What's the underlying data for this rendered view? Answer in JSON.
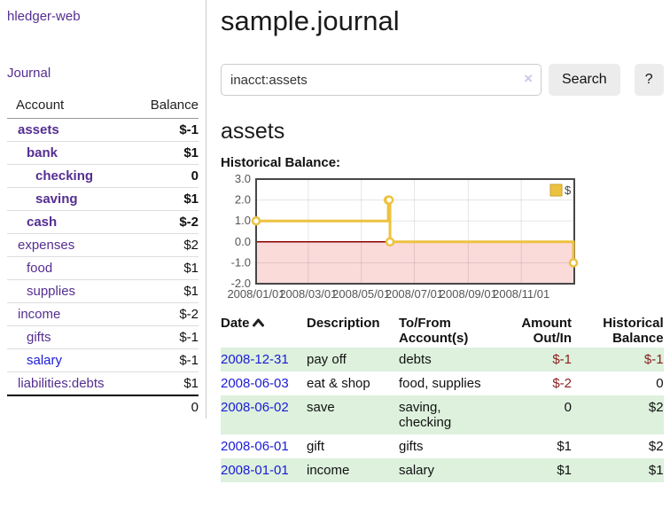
{
  "app_title": "hledger-web",
  "sidebar": {
    "journal_link": "Journal",
    "accounts": {
      "col_account": "Account",
      "col_balance": "Balance",
      "rows": [
        {
          "name": "assets",
          "balance": "$-1",
          "indent": 1,
          "bold": true,
          "balance_negative": true
        },
        {
          "name": "bank",
          "balance": "$1",
          "indent": 2,
          "bold": true,
          "balance_negative": false
        },
        {
          "name": "checking",
          "balance": "0",
          "indent": 3,
          "bold": true,
          "balance_negative": false
        },
        {
          "name": "saving",
          "balance": "$1",
          "indent": 3,
          "bold": true,
          "balance_negative": false
        },
        {
          "name": "cash",
          "balance": "$-2",
          "indent": 2,
          "bold": true,
          "balance_negative": true
        },
        {
          "name": "expenses",
          "balance": "$2",
          "indent": 1,
          "bold": false,
          "balance_negative": false
        },
        {
          "name": "food",
          "balance": "$1",
          "indent": 2,
          "bold": false,
          "balance_negative": false
        },
        {
          "name": "supplies",
          "balance": "$1",
          "indent": 2,
          "bold": false,
          "balance_negative": false
        },
        {
          "name": "income",
          "balance": "$-2",
          "indent": 1,
          "bold": false,
          "balance_negative": true
        },
        {
          "name": "gifts",
          "balance": "$-1",
          "indent": 2,
          "bold": false,
          "balance_negative": true
        },
        {
          "name": "salary",
          "balance": "$-1",
          "indent": 2,
          "bold": false,
          "balance_negative": true,
          "unvisited": true
        },
        {
          "name": "liabilities:debts",
          "balance": "$1",
          "indent": 1,
          "bold": false,
          "balance_negative": false
        }
      ],
      "total": "0"
    }
  },
  "main": {
    "page_title": "sample.journal",
    "search": {
      "value": "inacct:assets",
      "clear_icon": "×",
      "search_button": "Search",
      "help_button": "?"
    },
    "account_heading": "assets",
    "chart_heading": "Historical Balance:"
  },
  "chart_data": {
    "type": "line",
    "step": true,
    "series": [
      {
        "name": "$",
        "color": "#edc240",
        "points": [
          [
            "2008-01-01",
            1
          ],
          [
            "2008-06-01",
            2
          ],
          [
            "2008-06-02",
            2
          ],
          [
            "2008-06-03",
            0
          ],
          [
            "2008-12-31",
            -1
          ]
        ]
      }
    ],
    "ylim": [
      -2,
      3
    ],
    "yticks": [
      "3.0",
      "2.0",
      "1.0",
      "0.0",
      "-1.0",
      "-2.0"
    ],
    "xticks": [
      "2008/01/01",
      "2008/03/01",
      "2008/05/01",
      "2008/07/01",
      "2008/09/01",
      "2008/11/01"
    ],
    "x_range": [
      "2008-01-01",
      "2009-01-01"
    ],
    "legend_position": "top-right",
    "grid": true,
    "negative_region_color": "#fbdada",
    "zero_line_color": "#8b0000",
    "border_color": "#474747",
    "tick_label_color": "#555555"
  },
  "register": {
    "headers": {
      "date": "Date",
      "description": "Description",
      "tofrom": "To/From Account(s)",
      "amount": "Amount Out/In",
      "balance": "Historical Balance"
    },
    "sort": "ascending",
    "rows": [
      {
        "date": "2008-12-31",
        "description": "pay off",
        "accounts": "debts",
        "amount": "$-1",
        "balance": "$-1",
        "amount_negative": true,
        "balance_negative": true,
        "shaded": true
      },
      {
        "date": "2008-06-03",
        "description": "eat & shop",
        "accounts": "food, supplies",
        "amount": "$-2",
        "balance": "0",
        "amount_negative": true,
        "balance_negative": false,
        "shaded": false
      },
      {
        "date": "2008-06-02",
        "description": "save",
        "accounts": "saving, checking",
        "amount": "0",
        "balance": "$2",
        "amount_negative": false,
        "balance_negative": false,
        "shaded": true
      },
      {
        "date": "2008-06-01",
        "description": "gift",
        "accounts": "gifts",
        "amount": "$1",
        "balance": "$2",
        "amount_negative": false,
        "balance_negative": false,
        "shaded": false
      },
      {
        "date": "2008-01-01",
        "description": "income",
        "accounts": "salary",
        "amount": "$1",
        "balance": "$1",
        "amount_negative": false,
        "balance_negative": false,
        "shaded": true
      }
    ]
  },
  "colors": {
    "link_purple": "#552e91",
    "link_blue": "#1b1bd6",
    "negative_strong": "#7f1414",
    "negative_muted": "#b06262",
    "negative": "#8b1d1d",
    "row_stripe_green": "#ddf1dd",
    "chart_gold": "#edc240",
    "chart_negative_bg": "#fbdada",
    "chart_zero_line": "#8b0000",
    "clear_icon": "#d0c4e8",
    "button_bg": "#ececec"
  }
}
